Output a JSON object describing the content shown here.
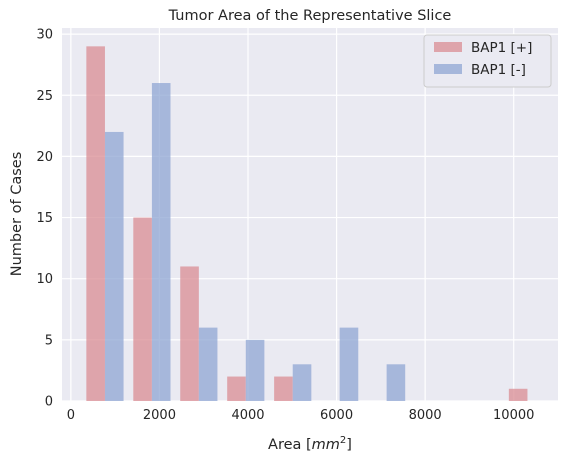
{
  "chart_data": {
    "type": "bar",
    "title": "Tumor Area of the Representative Slice",
    "xlabel": "Area [",
    "xlabel_math": "mm",
    "xlabel_sup": "2",
    "xlabel_end": "]",
    "ylabel": "Number of Cases",
    "xlim": [
      -200,
      11000
    ],
    "ylim": [
      0,
      30.5
    ],
    "xticks": [
      0,
      2000,
      4000,
      6000,
      8000,
      10000
    ],
    "xtick_labels": [
      "0",
      "2000",
      "4000",
      "6000",
      "8000",
      "10000"
    ],
    "yticks": [
      0,
      5,
      10,
      15,
      20,
      25,
      30
    ],
    "ytick_labels": [
      "0",
      "5",
      "10",
      "15",
      "20",
      "25",
      "30"
    ],
    "grid": true,
    "legend_position": "top-right",
    "bar_width": 420,
    "series": [
      {
        "name": "BAP1 [+]",
        "color": "#d98c93",
        "x": [
          560,
          1620,
          2680,
          3740,
          4800,
          10100
        ],
        "values": [
          29,
          15,
          11,
          2,
          2,
          1
        ]
      },
      {
        "name": "BAP1 [-]",
        "color": "#8fa6d3",
        "x": [
          980,
          2040,
          3100,
          4160,
          5220,
          6280,
          7340
        ],
        "values": [
          22,
          26,
          6,
          5,
          3,
          6,
          3
        ]
      }
    ]
  }
}
